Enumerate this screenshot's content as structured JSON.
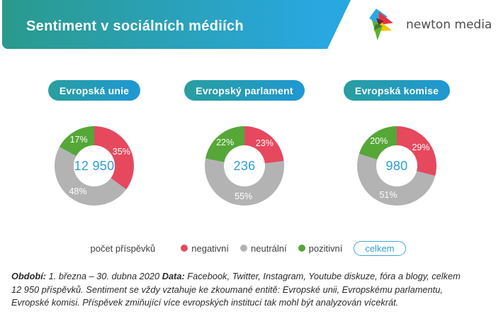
{
  "header": {
    "title": "Sentiment v sociálních médiích"
  },
  "logo": {
    "brand": "newton media"
  },
  "colors": {
    "banner_gradient_start": "#2A9A8D",
    "banner_gradient_end": "#29A7E0",
    "negative": "#E6485E",
    "neutral": "#B3B3B3",
    "positive": "#55A737",
    "accent_blue": "#2B9FD8"
  },
  "chart_data": [
    {
      "type": "pie",
      "subtype": "donut",
      "title": "Evropská unie",
      "center_value": "12 950",
      "categories": [
        "negativní",
        "neutrální",
        "pozitivní"
      ],
      "values": [
        35,
        48,
        17
      ],
      "value_unit": "%",
      "colors": [
        "#E6485E",
        "#B3B3B3",
        "#55A737"
      ]
    },
    {
      "type": "pie",
      "subtype": "donut",
      "title": "Evropský parlament",
      "center_value": "236",
      "categories": [
        "negativní",
        "neutrální",
        "pozitivní"
      ],
      "values": [
        23,
        55,
        22
      ],
      "value_unit": "%",
      "colors": [
        "#E6485E",
        "#B3B3B3",
        "#55A737"
      ]
    },
    {
      "type": "pie",
      "subtype": "donut",
      "title": "Evropská komise",
      "center_value": "980",
      "categories": [
        "negativní",
        "neutrální",
        "pozitivní"
      ],
      "values": [
        29,
        51,
        20
      ],
      "value_unit": "%",
      "colors": [
        "#E6485E",
        "#B3B3B3",
        "#55A737"
      ]
    }
  ],
  "legend": {
    "count_label": "počet příspěvků",
    "items": [
      {
        "label": "negativní",
        "color": "#E6485E"
      },
      {
        "label": "neutrální",
        "color": "#B3B3B3"
      },
      {
        "label": "pozitivní",
        "color": "#55A737"
      }
    ],
    "total_label": "celkem"
  },
  "footer": {
    "segments": [
      {
        "text": "Období:",
        "bold": true
      },
      {
        "text": " 1. března – 30. dubna 2020 ",
        "bold": false
      },
      {
        "text": "Data:",
        "bold": true
      },
      {
        "text": " Facebook, Twitter, Instagram, Youtube diskuze, fóra a blogy, celkem 12 950 příspěvků. Sentiment se vždy vztahuje ke zkoumané entitě: Evropské unii, Evropskému parlamentu, Evropské komisi. Příspěvek zmiňující více evropských institucí tak mohl být analyzován vícekrát.",
        "bold": false
      }
    ]
  }
}
